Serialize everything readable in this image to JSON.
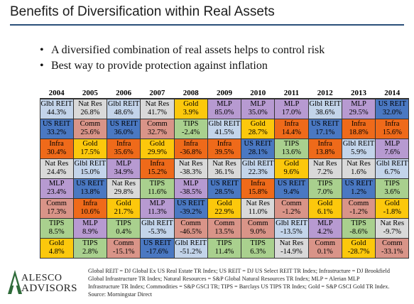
{
  "title": "Benefits of Diversification within Real Assets",
  "bullets": [
    "A diversified combination of real assets helps to control risk",
    "Best way to provide protection against inflation"
  ],
  "bullet_glyph": "•",
  "colors": {
    "Glbl REIT": "#c3d4ea",
    "Nat Res": "#d9d9d9",
    "US REIT": "#4a78c2",
    "Comm": "#d99488",
    "Infra": "#ef6a1a",
    "Gold": "#fcc80c",
    "TIPS": "#a9d08e",
    "MLP": "#b79ad1"
  },
  "years": [
    "2004",
    "2005",
    "2006",
    "2007",
    "2008",
    "2009",
    "2010",
    "2011",
    "2012",
    "2013",
    "2014"
  ],
  "rows": [
    [
      [
        "Glbl REIT",
        "44.3%"
      ],
      [
        "Nat Res",
        "26.8%"
      ],
      [
        "Glbl REIT",
        "48.6%"
      ],
      [
        "Nat Res",
        "41.7%"
      ],
      [
        "Gold",
        "3.9%"
      ],
      [
        "MLP",
        "85.0%"
      ],
      [
        "MLP",
        "35.0%"
      ],
      [
        "MLP",
        "17.0%"
      ],
      [
        "Glbl REIT",
        "38.6%"
      ],
      [
        "MLP",
        "29.5%"
      ],
      [
        "US REIT",
        "32.0%"
      ]
    ],
    [
      [
        "US REIT",
        "33.2%"
      ],
      [
        "Comm",
        "25.6%"
      ],
      [
        "US REIT",
        "36.0%"
      ],
      [
        "Comm",
        "32.7%"
      ],
      [
        "TIPS",
        "-2.4%"
      ],
      [
        "Glbl REIT",
        "41.5%"
      ],
      [
        "Gold",
        "28.7%"
      ],
      [
        "Infra",
        "14.4%"
      ],
      [
        "US REIT",
        "17.1%"
      ],
      [
        "Infra",
        "18.8%"
      ],
      [
        "Infra",
        "15.6%"
      ]
    ],
    [
      [
        "Infra",
        "30.4%"
      ],
      [
        "Gold",
        "17.5%"
      ],
      [
        "Infra",
        "35.6%"
      ],
      [
        "Gold",
        "29.9%"
      ],
      [
        "Infra",
        "-36.8%"
      ],
      [
        "Infra",
        "39.5%"
      ],
      [
        "US REIT",
        "28.1%"
      ],
      [
        "TIPS",
        "13.6%"
      ],
      [
        "Infra",
        "13.8%"
      ],
      [
        "Glbl REIT",
        "5.9%"
      ],
      [
        "MLP",
        "7.6%"
      ]
    ],
    [
      [
        "Nat Res",
        "24.4%"
      ],
      [
        "Glbl REIT",
        "15.0%"
      ],
      [
        "MLP",
        "34.9%"
      ],
      [
        "Infra",
        "15.2%"
      ],
      [
        "Nat Res",
        "-38.3%"
      ],
      [
        "Nat Res",
        "36.1%"
      ],
      [
        "Glbl REIT",
        "22.3%"
      ],
      [
        "Gold",
        "9.6%"
      ],
      [
        "Nat Res",
        "7.2%"
      ],
      [
        "Nat Res",
        "1.6%"
      ],
      [
        "Glbl REIT",
        "6.7%"
      ]
    ],
    [
      [
        "MLP",
        "23.4%"
      ],
      [
        "US REIT",
        "13.8%"
      ],
      [
        "Nat Res",
        "29.8%"
      ],
      [
        "TIPS",
        "11.6%"
      ],
      [
        "MLP",
        "-38.5%"
      ],
      [
        "US REIT",
        "28.5%"
      ],
      [
        "Infra",
        "15.8%"
      ],
      [
        "US REIT",
        "9.4%"
      ],
      [
        "TIPS",
        "7.0%"
      ],
      [
        "US REIT",
        "1.2%"
      ],
      [
        "TIPS",
        "3.6%"
      ]
    ],
    [
      [
        "Comm",
        "17.3%"
      ],
      [
        "Infra",
        "10.6%"
      ],
      [
        "Gold",
        "21.7%"
      ],
      [
        "MLP",
        "11.3%"
      ],
      [
        "US REIT",
        "-39.2%"
      ],
      [
        "Gold",
        "22.9%"
      ],
      [
        "Nat Res",
        "11.0%"
      ],
      [
        "Comm",
        "-1.2%"
      ],
      [
        "Gold",
        "6.1%"
      ],
      [
        "Comm",
        "-1.2%"
      ],
      [
        "Gold",
        "-1.8%"
      ]
    ],
    [
      [
        "TIPS",
        "8.5%"
      ],
      [
        "MLP",
        "8.9%"
      ],
      [
        "TIPS",
        "0.4%"
      ],
      [
        "Glbl REIT",
        "-5.3%"
      ],
      [
        "Comm",
        "-46.5%"
      ],
      [
        "Comm",
        "13.5%"
      ],
      [
        "Comm",
        "9.0%"
      ],
      [
        "Glbl REIT",
        "-13.5%"
      ],
      [
        "MLP",
        "4.2%"
      ],
      [
        "TIPS",
        "-8.6%"
      ],
      [
        "Nat Res",
        "-9.7%"
      ]
    ],
    [
      [
        "Gold",
        "4.8%"
      ],
      [
        "TIPS",
        "2.8%"
      ],
      [
        "Comm",
        "-15.1%"
      ],
      [
        "US REIT",
        "-17.6%"
      ],
      [
        "Glbl REIT",
        "-51.2%"
      ],
      [
        "TIPS",
        "11.4%"
      ],
      [
        "TIPS",
        "6.3%"
      ],
      [
        "Nat Res",
        "-14.9%"
      ],
      [
        "Comm",
        "0.1%"
      ],
      [
        "Gold",
        "-28.7%"
      ],
      [
        "Comm",
        "-33.1%"
      ]
    ]
  ],
  "logo": {
    "line1": "ALESCO",
    "line2": "ADVISORS"
  },
  "footnote": [
    "Global REIT = DJ Global Ex US Real Estate TR Index; US REIT = DJ US Select REIT TR Index; Infrastructure = DJ Brookfield",
    "Global Infrastructure TR Index; Natural Resources = S&P Global Natural Resources TR Index; MLP = Alerian MLP",
    "Infrastructure TR Index; Commodities = S&P GSCI TR; TIPS = Barclays US TIPS TR Index; Gold = S&P GSCI Gold TR Index.",
    "Source: Morningstar Direct"
  ]
}
